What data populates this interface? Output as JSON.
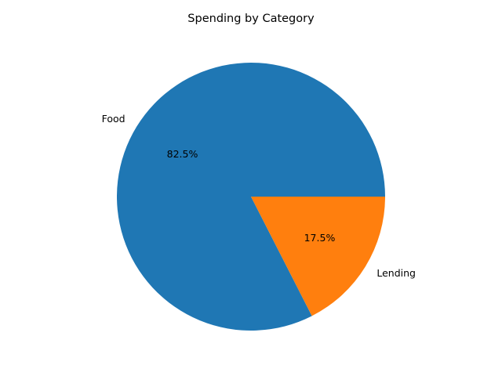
{
  "chart_data": {
    "type": "pie",
    "title": "Spending by Category",
    "categories": [
      "Food",
      "Lending"
    ],
    "values": [
      82.5,
      17.5
    ],
    "labels": [
      "Food",
      "Lending"
    ],
    "percent_labels": [
      "82.5%",
      "17.5%"
    ],
    "colors": [
      "#1f77b4",
      "#ff7f0e"
    ],
    "start_angle_deg": 0,
    "direction": "counterclockwise"
  }
}
